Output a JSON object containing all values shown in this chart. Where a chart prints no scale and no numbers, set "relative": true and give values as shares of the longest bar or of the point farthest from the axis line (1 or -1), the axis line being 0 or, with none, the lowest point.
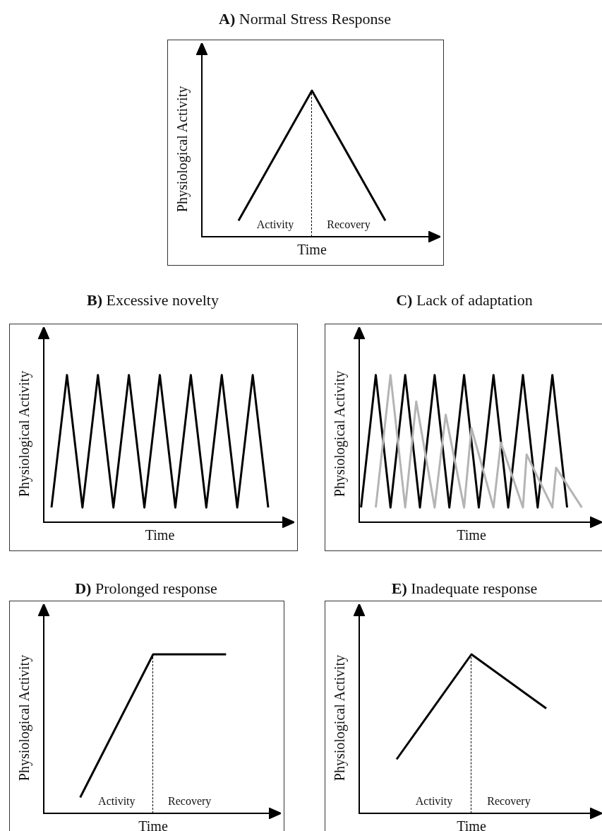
{
  "chart_data": [
    {
      "type": "line",
      "title": "A) Normal Stress Response",
      "xlabel": "Time",
      "ylabel": "Physiological Activity",
      "categories": [
        null,
        null,
        null
      ],
      "relative": true,
      "tick_labels": false,
      "marker": "none",
      "series": [
        {
          "color": "#000000",
          "values": [
            0.11,
            1,
            0.11
          ]
        }
      ],
      "annotations": [
        "Activity",
        "Recovery"
      ]
    },
    {
      "type": "line",
      "title": "B) Excessive novelty",
      "xlabel": "Time",
      "ylabel": "Physiological Activity",
      "categories": [
        null,
        null,
        null,
        null,
        null,
        null,
        null,
        null,
        null,
        null,
        null,
        null,
        null,
        null,
        null
      ],
      "relative": true,
      "tick_labels": false,
      "marker": "none",
      "series": [
        {
          "color": "#000000",
          "values": [
            0.1,
            1,
            0.1,
            1,
            0.1,
            1,
            0.1,
            1,
            0.1,
            1,
            0.1,
            1,
            0.1,
            1,
            0.1
          ]
        }
      ]
    },
    {
      "type": "line",
      "title": "C) Lack of adaptation",
      "xlabel": "Time",
      "ylabel": "Physiological Activity",
      "categories": [
        null,
        null,
        null,
        null,
        null,
        null,
        null,
        null,
        null,
        null,
        null,
        null,
        null,
        null,
        null,
        null,
        null,
        null,
        null,
        null,
        null,
        null,
        null,
        null,
        null,
        null,
        null,
        null,
        null,
        null,
        null,
        null,
        null,
        null,
        null,
        null,
        null,
        null,
        null,
        null,
        null,
        null,
        null,
        null,
        null,
        null,
        null,
        null,
        null,
        null,
        null,
        null,
        null,
        null,
        null,
        null,
        null,
        null,
        null,
        null,
        null
      ],
      "relative": true,
      "tick_labels": false,
      "marker": "none",
      "series": [
        {
          "color": "#b4b4b4",
          "values": [
            null,
            null,
            null,
            null,
            0.1,
            null,
            null,
            null,
            1,
            null,
            null,
            null,
            0.1,
            null,
            null,
            0.82,
            null,
            null,
            null,
            null,
            0.1,
            null,
            null,
            0.73,
            null,
            null,
            null,
            null,
            0.1,
            null,
            0.64,
            null,
            null,
            null,
            null,
            null,
            0.1,
            null,
            0.54,
            null,
            null,
            null,
            null,
            null,
            0.1,
            0.46,
            null,
            null,
            null,
            null,
            null,
            null,
            0.1,
            0.37,
            null,
            null,
            null,
            null,
            null,
            null,
            0.1
          ]
        },
        {
          "color": "#000000",
          "values": [
            0.1,
            null,
            null,
            null,
            1,
            null,
            null,
            null,
            0.1,
            null,
            null,
            null,
            1,
            null,
            null,
            null,
            0.1,
            null,
            null,
            null,
            1,
            null,
            null,
            null,
            0.1,
            null,
            null,
            null,
            1,
            null,
            null,
            null,
            0.1,
            null,
            null,
            null,
            1,
            null,
            null,
            null,
            0.1,
            null,
            null,
            null,
            1,
            null,
            null,
            null,
            0.1,
            null,
            null,
            null,
            1,
            null,
            null,
            null,
            0.1,
            null,
            null,
            null,
            null
          ]
        }
      ]
    },
    {
      "type": "line",
      "title": "D) Prolonged response",
      "xlabel": "Time",
      "ylabel": "Physiological Activity",
      "categories": [
        null,
        null,
        null
      ],
      "relative": true,
      "tick_labels": false,
      "marker": "none",
      "series": [
        {
          "color": "#000000",
          "values": [
            0.1,
            1,
            1
          ]
        }
      ],
      "annotations": [
        "Activity",
        "Recovery"
      ]
    },
    {
      "type": "line",
      "title": "E) Inadequate response",
      "xlabel": "Time",
      "ylabel": "Physiological Activity",
      "categories": [
        null,
        null,
        null
      ],
      "relative": true,
      "tick_labels": false,
      "marker": "none",
      "series": [
        {
          "color": "#000000",
          "values": [
            0.34,
            1,
            0.66
          ]
        }
      ],
      "annotations": [
        "Activity",
        "Recovery"
      ]
    }
  ]
}
